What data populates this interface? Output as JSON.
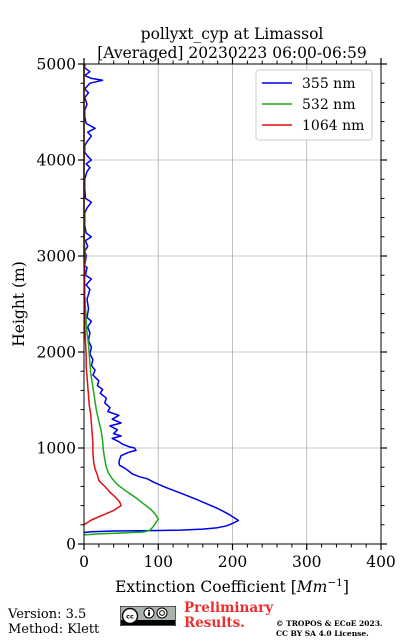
{
  "chart_data": {
    "type": "line",
    "title": "pollyxt_cyp at Limassol",
    "subtitle": "[Averaged] 20230223 06:00-06:59",
    "xlabel": "Extinction Coefficient [Mm⁻¹]",
    "ylabel": "Height (m)",
    "xlim": [
      0,
      400
    ],
    "ylim": [
      0,
      5000
    ],
    "xticks": [
      0,
      100,
      200,
      300,
      400
    ],
    "yticks": [
      0,
      1000,
      2000,
      3000,
      4000,
      5000
    ],
    "grid": true,
    "legend_position": "top-right",
    "series": [
      {
        "name": "355 nm",
        "color": "#0000ee",
        "points": [
          [
            0,
            120
          ],
          [
            10,
            128
          ],
          [
            40,
            135
          ],
          [
            90,
            140
          ],
          [
            130,
            145
          ],
          [
            160,
            155
          ],
          [
            180,
            170
          ],
          [
            192,
            190
          ],
          [
            200,
            215
          ],
          [
            208,
            245
          ],
          [
            202,
            275
          ],
          [
            197,
            300
          ],
          [
            190,
            330
          ],
          [
            180,
            370
          ],
          [
            165,
            420
          ],
          [
            150,
            470
          ],
          [
            130,
            530
          ],
          [
            110,
            590
          ],
          [
            95,
            640
          ],
          [
            85,
            680
          ],
          [
            75,
            700
          ],
          [
            65,
            730
          ],
          [
            60,
            760
          ],
          [
            55,
            790
          ],
          [
            48,
            820
          ],
          [
            47,
            850
          ],
          [
            48,
            880
          ],
          [
            50,
            920
          ],
          [
            60,
            955
          ],
          [
            70,
            975
          ],
          [
            68,
            1000
          ],
          [
            60,
            1015
          ],
          [
            52,
            1040
          ],
          [
            46,
            1070
          ],
          [
            38,
            1100
          ],
          [
            50,
            1125
          ],
          [
            40,
            1150
          ],
          [
            45,
            1190
          ],
          [
            35,
            1230
          ],
          [
            50,
            1260
          ],
          [
            38,
            1300
          ],
          [
            47,
            1340
          ],
          [
            32,
            1380
          ],
          [
            35,
            1420
          ],
          [
            28,
            1470
          ],
          [
            30,
            1520
          ],
          [
            22,
            1570
          ],
          [
            25,
            1610
          ],
          [
            18,
            1650
          ],
          [
            20,
            1700
          ],
          [
            12,
            1760
          ],
          [
            15,
            1810
          ],
          [
            10,
            1860
          ],
          [
            12,
            1920
          ],
          [
            8,
            1980
          ],
          [
            10,
            2050
          ],
          [
            6,
            2120
          ],
          [
            8,
            2200
          ],
          [
            5,
            2260
          ],
          [
            10,
            2320
          ],
          [
            4,
            2360
          ],
          [
            6,
            2450
          ],
          [
            4,
            2550
          ],
          [
            8,
            2650
          ],
          [
            3,
            2700
          ],
          [
            10,
            2760
          ],
          [
            2,
            2800
          ],
          [
            4,
            2880
          ],
          [
            1,
            2900
          ],
          [
            3,
            3000
          ],
          [
            1,
            3050
          ],
          [
            5,
            3100
          ],
          [
            2,
            3160
          ],
          [
            10,
            3200
          ],
          [
            3,
            3240
          ],
          [
            1,
            3320
          ],
          [
            1,
            3450
          ],
          [
            4,
            3500
          ],
          [
            10,
            3560
          ],
          [
            2,
            3600
          ],
          [
            1,
            3700
          ],
          [
            1,
            3800
          ],
          [
            4,
            3880
          ],
          [
            8,
            3920
          ],
          [
            3,
            3960
          ],
          [
            10,
            4000
          ],
          [
            5,
            4040
          ],
          [
            1,
            4080
          ],
          [
            1,
            4150
          ],
          [
            5,
            4200
          ],
          [
            10,
            4250
          ],
          [
            5,
            4290
          ],
          [
            15,
            4330
          ],
          [
            3,
            4380
          ],
          [
            1,
            4450
          ],
          [
            1,
            4520
          ],
          [
            4,
            4580
          ],
          [
            1,
            4650
          ],
          [
            6,
            4700
          ],
          [
            1,
            4740
          ],
          [
            8,
            4800
          ],
          [
            25,
            4830
          ],
          [
            10,
            4850
          ],
          [
            1,
            4880
          ],
          [
            8,
            4920
          ],
          [
            1,
            4960
          ],
          [
            1,
            5000
          ]
        ]
      },
      {
        "name": "532 nm",
        "color": "#1aaa1a",
        "points": [
          [
            0,
            95
          ],
          [
            20,
            105
          ],
          [
            50,
            115
          ],
          [
            80,
            125
          ],
          [
            88,
            140
          ],
          [
            92,
            170
          ],
          [
            95,
            200
          ],
          [
            100,
            260
          ],
          [
            96,
            310
          ],
          [
            90,
            360
          ],
          [
            80,
            420
          ],
          [
            70,
            480
          ],
          [
            55,
            560
          ],
          [
            45,
            620
          ],
          [
            38,
            680
          ],
          [
            33,
            740
          ],
          [
            30,
            800
          ],
          [
            28,
            880
          ],
          [
            26,
            980
          ],
          [
            25,
            1080
          ],
          [
            23,
            1180
          ],
          [
            20,
            1280
          ],
          [
            17,
            1380
          ],
          [
            15,
            1480
          ],
          [
            13,
            1580
          ],
          [
            11,
            1680
          ],
          [
            9,
            1780
          ],
          [
            8,
            1880
          ],
          [
            7,
            1980
          ],
          [
            6,
            2080
          ],
          [
            4,
            2200
          ],
          [
            3,
            2320
          ],
          [
            2,
            2450
          ],
          [
            1,
            2600
          ],
          [
            1,
            3000
          ],
          [
            0,
            3500
          ],
          [
            0,
            4000
          ],
          [
            0,
            5000
          ]
        ]
      },
      {
        "name": "1064 nm",
        "color": "#dd1111",
        "points": [
          [
            0,
            200
          ],
          [
            10,
            250
          ],
          [
            25,
            300
          ],
          [
            40,
            350
          ],
          [
            50,
            400
          ],
          [
            48,
            440
          ],
          [
            42,
            490
          ],
          [
            35,
            540
          ],
          [
            28,
            600
          ],
          [
            20,
            660
          ],
          [
            18,
            720
          ],
          [
            15,
            780
          ],
          [
            13,
            850
          ],
          [
            12,
            950
          ],
          [
            12,
            1050
          ],
          [
            11,
            1150
          ],
          [
            10,
            1250
          ],
          [
            9,
            1350
          ],
          [
            7,
            1450
          ],
          [
            6,
            1550
          ],
          [
            5,
            1650
          ],
          [
            4,
            1750
          ],
          [
            3,
            1850
          ],
          [
            3,
            1950
          ],
          [
            2,
            2100
          ],
          [
            1,
            2300
          ],
          [
            1,
            2600
          ],
          [
            0,
            3000
          ],
          [
            0,
            4000
          ],
          [
            0,
            5000
          ]
        ]
      }
    ]
  },
  "footer": {
    "version": "Version: 3.5",
    "method": "Method: Klett",
    "license_badge": "cc-by-sa-badge",
    "preliminary": "Preliminary",
    "results": "Results.",
    "copyright_line1": "© TROPOS & ECoE 2023.",
    "copyright_line2": "CC BY SA 4.0 License."
  }
}
